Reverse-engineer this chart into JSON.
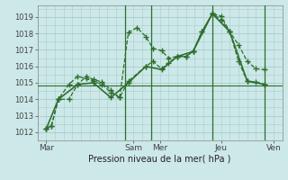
{
  "background_color": "#cce8e8",
  "grid_color": "#aacccc",
  "line_color": "#2d6e2d",
  "xlabel": "Pression niveau de la mer( hPa )",
  "ylim": [
    1011.5,
    1019.7
  ],
  "yticks": [
    1012,
    1013,
    1014,
    1015,
    1016,
    1017,
    1018,
    1019
  ],
  "xlim": [
    0,
    14.0
  ],
  "day_labels": [
    "Mar",
    "Sam",
    "Mer",
    "Jeu",
    "Ven"
  ],
  "day_positions": [
    0.5,
    5.5,
    7.0,
    10.5,
    13.5
  ],
  "vline_positions": [
    5.0,
    6.5,
    10.0,
    13.0
  ],
  "series1": {
    "x": [
      0.5,
      0.8,
      1.2,
      1.8,
      2.3,
      2.8,
      3.2,
      3.7,
      4.2,
      4.7,
      5.2,
      5.7,
      6.2,
      6.6,
      7.1,
      7.5,
      8.0,
      8.5,
      8.9,
      9.4,
      10.0,
      10.5,
      11.0,
      11.5,
      12.0,
      12.5,
      13.0
    ],
    "y": [
      1012.2,
      1012.4,
      1014.0,
      1014.0,
      1014.9,
      1015.4,
      1015.2,
      1015.05,
      1014.55,
      1014.1,
      1018.05,
      1018.35,
      1017.8,
      1017.1,
      1016.95,
      1016.5,
      1016.6,
      1016.6,
      1016.9,
      1018.1,
      1019.2,
      1019.05,
      1018.1,
      1017.3,
      1016.3,
      1015.85,
      1015.8
    ]
  },
  "series2": {
    "x": [
      0.5,
      0.8,
      1.2,
      1.8,
      2.3,
      2.8,
      3.2,
      3.7,
      4.2,
      4.7,
      5.2,
      6.2,
      6.6,
      7.1,
      7.5,
      8.0,
      8.5,
      8.9,
      9.4,
      10.0,
      10.5,
      11.0,
      11.5,
      12.0,
      12.5,
      13.0
    ],
    "y": [
      1012.2,
      1012.4,
      1014.0,
      1014.9,
      1015.4,
      1015.25,
      1015.1,
      1014.9,
      1014.4,
      1014.1,
      1015.1,
      1016.0,
      1016.3,
      1015.85,
      1016.2,
      1016.6,
      1016.6,
      1016.9,
      1018.1,
      1019.2,
      1018.85,
      1018.1,
      1016.3,
      1015.1,
      1015.05,
      1014.9
    ]
  },
  "series3": {
    "x": [
      0.5,
      1.2,
      2.3,
      3.2,
      4.2,
      5.2,
      6.2,
      7.1,
      8.0,
      8.9,
      10.0,
      11.0,
      12.0,
      13.0
    ],
    "y": [
      1012.2,
      1014.0,
      1014.9,
      1015.0,
      1014.1,
      1015.0,
      1016.0,
      1015.8,
      1016.6,
      1016.9,
      1019.2,
      1018.1,
      1015.1,
      1014.9
    ]
  },
  "hline_y": 1014.85
}
